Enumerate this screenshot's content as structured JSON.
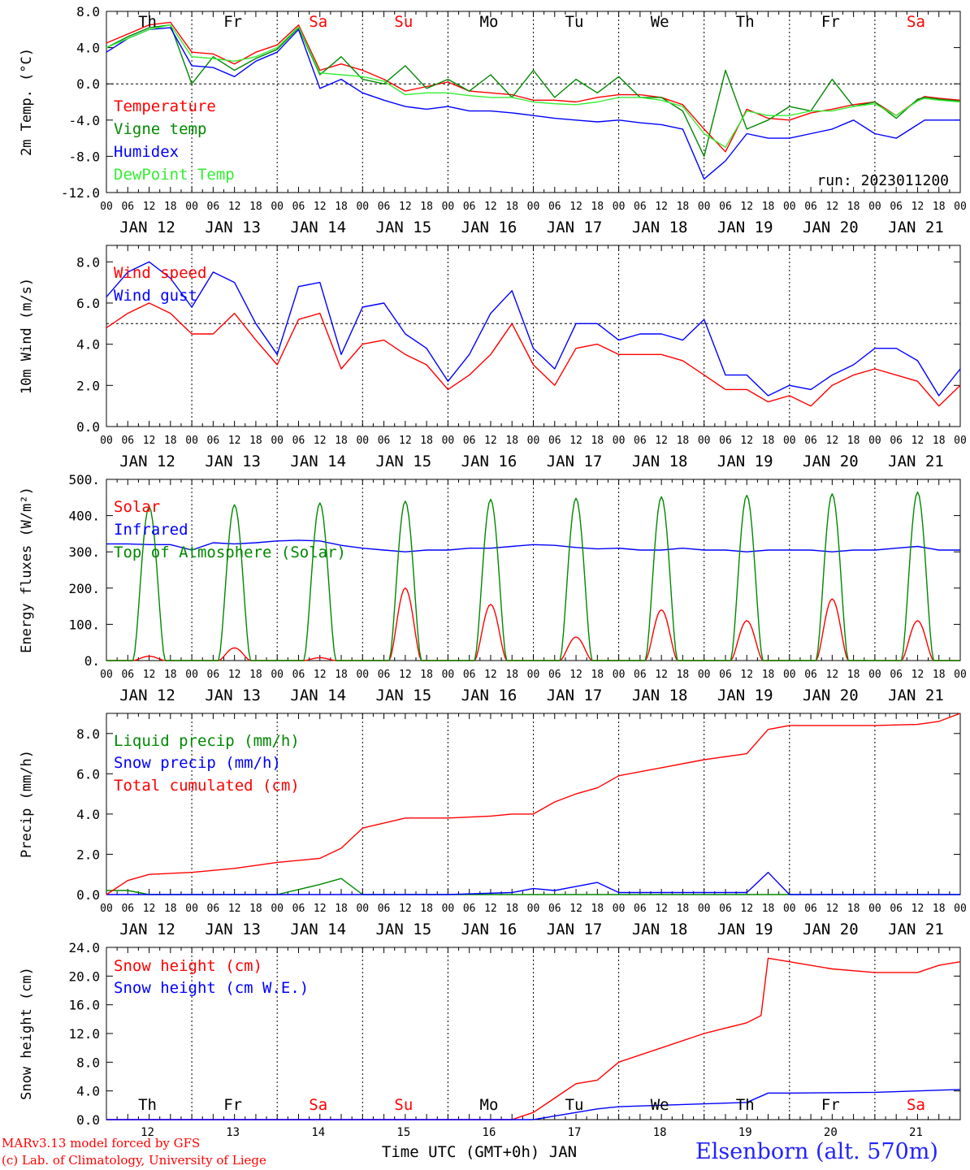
{
  "days": {
    "weekday_labels": [
      "Th",
      "Fr",
      "Sa",
      "Su",
      "Mo",
      "Tu",
      "We",
      "Th",
      "Fr",
      "Sa"
    ],
    "weekday_colors": [
      "#000000",
      "#000000",
      "#ff0000",
      "#ff0000",
      "#000000",
      "#000000",
      "#000000",
      "#000000",
      "#000000",
      "#ff0000"
    ],
    "date_labels": [
      "JAN 12",
      "JAN 13",
      "JAN 14",
      "JAN 15",
      "JAN 16",
      "JAN 17",
      "JAN 18",
      "JAN 19",
      "JAN 20",
      "JAN 21"
    ],
    "hour_ticks": [
      "00",
      "06",
      "12",
      "18"
    ],
    "final_tick": "00",
    "day_numbers": [
      "12",
      "13",
      "14",
      "15",
      "16",
      "17",
      "18",
      "19",
      "20",
      "21"
    ]
  },
  "footer": {
    "credit_line1": "MARv3.13 model forced by GFS",
    "credit_line2": "(c) Lab. of Climatology, University of Liege",
    "station": "Elsenborn (alt. 570m)",
    "xlabel": "Time UTC (GMT+0h) JAN"
  },
  "chart_data": [
    {
      "type": "line",
      "ylabel": "2m Temp. (°C)",
      "ylim": [
        -12,
        8
      ],
      "yticks": [
        "8.0",
        "4.0",
        "0.0",
        "-4.0",
        "-8.0",
        "-12.0"
      ],
      "ytick_values": [
        8,
        4,
        0,
        -4,
        -8,
        -12
      ],
      "ref_line": 0,
      "annotation": "run: 2023011200",
      "x_units": "hours since JAN 12 00 UTC",
      "series": [
        {
          "name": "Temperature",
          "color": "#ff0000",
          "x": [
            0,
            6,
            12,
            18,
            24,
            30,
            36,
            42,
            48,
            54,
            60,
            66,
            72,
            78,
            84,
            90,
            96,
            102,
            108,
            114,
            120,
            126,
            132,
            138,
            144,
            150,
            156,
            162,
            168,
            174,
            180,
            186,
            192,
            198,
            204,
            210,
            216,
            222,
            228,
            230,
            234,
            240
          ],
          "y": [
            4.5,
            5.5,
            6.5,
            6.8,
            3.5,
            3.3,
            2.2,
            3.5,
            4.3,
            6.5,
            1.5,
            2.2,
            1.5,
            0.5,
            -0.8,
            -0.3,
            0.2,
            -0.8,
            -1.0,
            -1.2,
            -1.8,
            -1.8,
            -2.0,
            -1.5,
            -1.2,
            -1.2,
            -1.5,
            -2.3,
            -5.0,
            -7.5,
            -2.8,
            -3.8,
            -4.0,
            -3.2,
            -2.8,
            -2.3,
            -2.0,
            -3.5,
            -1.8,
            -1.4,
            -1.6,
            -1.8
          ]
        },
        {
          "name": "Vigne temp",
          "color": "#008800",
          "x": [
            0,
            6,
            12,
            18,
            24,
            30,
            36,
            42,
            48,
            54,
            60,
            66,
            72,
            78,
            84,
            90,
            96,
            102,
            108,
            114,
            120,
            126,
            132,
            138,
            144,
            150,
            156,
            162,
            168,
            174,
            180,
            186,
            192,
            198,
            204,
            210,
            216,
            222,
            228,
            230,
            234,
            240
          ],
          "y": [
            4.0,
            5.2,
            6.2,
            6.5,
            0.0,
            3.0,
            1.5,
            2.8,
            3.8,
            6.2,
            1.0,
            3.0,
            0.5,
            0.0,
            2.0,
            -0.5,
            0.5,
            -0.8,
            1.0,
            -1.5,
            1.5,
            -1.5,
            0.5,
            -1.0,
            0.8,
            -1.5,
            -1.5,
            -3.0,
            -8.0,
            1.5,
            -5.0,
            -4.0,
            -2.5,
            -3.0,
            0.5,
            -2.5,
            -2.0,
            -3.8,
            -1.7,
            -1.5,
            -1.7,
            -1.9
          ]
        },
        {
          "name": "Humidex",
          "color": "#0000ff",
          "x": [
            0,
            6,
            12,
            18,
            24,
            30,
            36,
            42,
            48,
            54,
            60,
            66,
            72,
            78,
            84,
            90,
            96,
            102,
            108,
            114,
            120,
            126,
            132,
            138,
            144,
            150,
            156,
            162,
            168,
            174,
            180,
            186,
            192,
            198,
            204,
            210,
            216,
            222,
            228,
            230,
            234,
            240
          ],
          "y": [
            3.5,
            5.0,
            6.0,
            6.2,
            2.0,
            1.8,
            0.8,
            2.5,
            3.5,
            6.0,
            -0.5,
            0.5,
            -1.0,
            -1.8,
            -2.5,
            -2.8,
            -2.5,
            -3.0,
            -3.0,
            -3.2,
            -3.5,
            -3.8,
            -4.0,
            -4.2,
            -4.0,
            -4.3,
            -4.5,
            -5.0,
            -10.5,
            -8.5,
            -5.5,
            -6.0,
            -6.0,
            -5.5,
            -5.0,
            -4.0,
            -5.5,
            -6.0,
            -4.5,
            -4.0,
            -4.0,
            -4.0
          ]
        },
        {
          "name": "DewPoint Temp",
          "color": "#33ee33",
          "x": [
            0,
            6,
            12,
            18,
            24,
            30,
            36,
            42,
            48,
            54,
            60,
            66,
            72,
            78,
            84,
            90,
            96,
            102,
            108,
            114,
            120,
            126,
            132,
            138,
            144,
            150,
            156,
            162,
            168,
            174,
            180,
            186,
            192,
            198,
            204,
            210,
            216,
            222,
            228,
            230,
            234,
            240
          ],
          "y": [
            4.0,
            5.0,
            6.0,
            6.5,
            3.0,
            2.8,
            2.5,
            3.0,
            4.0,
            6.3,
            1.2,
            1.0,
            0.8,
            0.3,
            -1.2,
            -1.0,
            -1.0,
            -1.3,
            -1.5,
            -1.5,
            -2.0,
            -2.2,
            -2.3,
            -2.0,
            -1.5,
            -1.5,
            -1.8,
            -2.5,
            -5.5,
            -7.0,
            -3.0,
            -3.5,
            -3.5,
            -3.0,
            -3.0,
            -2.5,
            -2.2,
            -3.5,
            -1.9,
            -1.6,
            -1.8,
            -2.0
          ]
        }
      ]
    },
    {
      "type": "line",
      "ylabel": "10m Wind (m/s)",
      "ylim": [
        0,
        8.8
      ],
      "yticks": [
        "8.0",
        "6.0",
        "4.0",
        "2.0",
        "0.0"
      ],
      "ytick_values": [
        8,
        6,
        4,
        2,
        0
      ],
      "ref_line": 5,
      "x_units": "hours since JAN 12 00 UTC",
      "series": [
        {
          "name": "Wind speed",
          "color": "#ff0000",
          "x": [
            0,
            6,
            12,
            18,
            24,
            30,
            36,
            42,
            48,
            54,
            60,
            66,
            72,
            78,
            84,
            90,
            96,
            102,
            108,
            114,
            120,
            126,
            132,
            138,
            144,
            150,
            156,
            162,
            168,
            174,
            180,
            186,
            192,
            198,
            204,
            210,
            216,
            222,
            228,
            234,
            240
          ],
          "y": [
            4.8,
            5.5,
            6.0,
            5.5,
            4.5,
            4.5,
            5.5,
            4.2,
            3.0,
            5.2,
            5.5,
            2.8,
            4.0,
            4.2,
            3.5,
            3.0,
            1.8,
            2.5,
            3.5,
            5.0,
            3.0,
            2.0,
            3.8,
            4.0,
            3.5,
            3.5,
            3.5,
            3.2,
            2.5,
            1.8,
            1.8,
            1.2,
            1.5,
            1.0,
            2.0,
            2.5,
            2.8,
            2.5,
            2.2,
            1.0,
            2.0
          ]
        },
        {
          "name": "Wind gust",
          "color": "#0000ff",
          "x": [
            0,
            6,
            12,
            18,
            24,
            30,
            36,
            42,
            48,
            54,
            60,
            66,
            72,
            78,
            84,
            90,
            96,
            102,
            108,
            114,
            120,
            126,
            132,
            138,
            144,
            150,
            156,
            162,
            168,
            174,
            180,
            186,
            192,
            198,
            204,
            210,
            216,
            222,
            228,
            234,
            240
          ],
          "y": [
            6.3,
            7.5,
            8.0,
            7.2,
            5.8,
            7.5,
            7.0,
            5.0,
            3.5,
            6.8,
            7.0,
            3.5,
            5.8,
            6.0,
            4.5,
            3.8,
            2.2,
            3.5,
            5.5,
            6.6,
            3.8,
            2.8,
            5.0,
            5.0,
            4.2,
            4.5,
            4.5,
            4.2,
            5.2,
            2.5,
            2.5,
            1.5,
            2.0,
            1.8,
            2.5,
            3.0,
            3.8,
            3.8,
            3.2,
            1.5,
            2.8
          ]
        }
      ]
    },
    {
      "type": "line",
      "ylabel": "Energy fluxes (W/m²)",
      "ylim": [
        0,
        500
      ],
      "yticks": [
        "500.",
        "400.",
        "300.",
        "200.",
        "100.",
        "0."
      ],
      "ytick_values": [
        500,
        400,
        300,
        200,
        100,
        0
      ],
      "x_units": "hours since JAN 12 00 UTC",
      "series": [
        {
          "name": "Solar",
          "color": "#ff0000",
          "daily_peak": [
            12,
            35,
            8,
            200,
            155,
            65,
            140,
            110,
            170,
            110
          ]
        },
        {
          "name": "Infrared",
          "color": "#0000ff",
          "x": [
            0,
            6,
            12,
            18,
            24,
            30,
            36,
            42,
            48,
            54,
            60,
            66,
            72,
            78,
            84,
            90,
            96,
            102,
            108,
            114,
            120,
            126,
            132,
            138,
            144,
            150,
            156,
            162,
            168,
            174,
            180,
            186,
            192,
            198,
            204,
            210,
            216,
            222,
            228,
            234,
            240
          ],
          "y": [
            322,
            322,
            320,
            320,
            305,
            325,
            322,
            325,
            330,
            332,
            330,
            318,
            310,
            305,
            300,
            305,
            305,
            310,
            310,
            315,
            320,
            318,
            312,
            308,
            310,
            305,
            305,
            310,
            305,
            305,
            300,
            305,
            305,
            305,
            300,
            305,
            305,
            310,
            315,
            305,
            305
          ]
        },
        {
          "name": "Top of Atmosphere (Solar)",
          "color": "#008800",
          "daily_peak": [
            425,
            430,
            435,
            440,
            445,
            448,
            452,
            456,
            460,
            465
          ]
        }
      ]
    },
    {
      "type": "line",
      "ylabel": "Precip (mm/h)",
      "ylim": [
        0,
        9
      ],
      "yticks": [
        "8.0",
        "6.0",
        "4.0",
        "2.0",
        "0.0"
      ],
      "ytick_values": [
        8,
        6,
        4,
        2,
        0
      ],
      "x_units": "hours since JAN 12 00 UTC",
      "series": [
        {
          "name": "Liquid precip (mm/h)",
          "color": "#008800",
          "x": [
            0,
            6,
            12,
            24,
            48,
            60,
            66,
            72,
            84,
            96,
            120,
            144,
            168,
            192,
            216,
            240
          ],
          "y": [
            0.2,
            0.2,
            0.0,
            0.0,
            0.0,
            0.5,
            0.8,
            0.0,
            0.0,
            0.0,
            0.0,
            0.0,
            0.0,
            0.0,
            0.0,
            0.0
          ]
        },
        {
          "name": "Snow precip (mm/h)",
          "color": "#0000ff",
          "x": [
            0,
            48,
            96,
            114,
            120,
            126,
            132,
            138,
            144,
            150,
            156,
            162,
            180,
            186,
            192,
            216,
            240
          ],
          "y": [
            0.0,
            0.0,
            0.0,
            0.1,
            0.3,
            0.2,
            0.4,
            0.6,
            0.1,
            0.1,
            0.1,
            0.1,
            0.1,
            1.1,
            0.0,
            0.0,
            0.0
          ]
        },
        {
          "name": "Total cumulated (cm)",
          "color": "#ff0000",
          "x": [
            0,
            6,
            12,
            24,
            36,
            48,
            60,
            66,
            72,
            84,
            96,
            108,
            114,
            120,
            126,
            132,
            138,
            144,
            156,
            168,
            180,
            186,
            192,
            204,
            216,
            228,
            234,
            240
          ],
          "y": [
            0.0,
            0.7,
            1.0,
            1.1,
            1.3,
            1.6,
            1.8,
            2.3,
            3.3,
            3.8,
            3.8,
            3.9,
            4.0,
            4.0,
            4.6,
            5.0,
            5.3,
            5.9,
            6.3,
            6.7,
            7.0,
            8.2,
            8.4,
            8.4,
            8.4,
            8.45,
            8.6,
            9.0
          ]
        }
      ]
    },
    {
      "type": "line",
      "ylabel": "Snow height (cm)",
      "ylim": [
        0,
        24
      ],
      "yticks": [
        "24.0",
        "20.0",
        "16.0",
        "12.0",
        "8.0",
        "4.0",
        "0.0"
      ],
      "ytick_values": [
        24,
        20,
        16,
        12,
        8,
        4,
        0
      ],
      "x_units": "hours since JAN 12 00 UTC",
      "series": [
        {
          "name": "Snow height (cm)",
          "color": "#ff0000",
          "x": [
            0,
            24,
            48,
            96,
            114,
            120,
            126,
            132,
            138,
            144,
            156,
            168,
            180,
            184,
            186,
            192,
            204,
            216,
            228,
            234,
            240
          ],
          "y": [
            0.0,
            0.0,
            0.0,
            0.0,
            0.0,
            1.0,
            3.0,
            5.0,
            5.5,
            8.0,
            10.0,
            12.0,
            13.5,
            14.5,
            22.5,
            22.0,
            21.0,
            20.5,
            20.5,
            21.5,
            22.0
          ]
        },
        {
          "name": "Snow height (cm W.E.)",
          "color": "#0000ff",
          "x": [
            0,
            96,
            120,
            126,
            132,
            138,
            144,
            156,
            168,
            180,
            186,
            192,
            216,
            240
          ],
          "y": [
            0.0,
            0.0,
            0.0,
            0.5,
            1.0,
            1.5,
            1.8,
            2.0,
            2.2,
            2.4,
            3.7,
            3.7,
            3.8,
            4.2
          ]
        }
      ]
    }
  ]
}
